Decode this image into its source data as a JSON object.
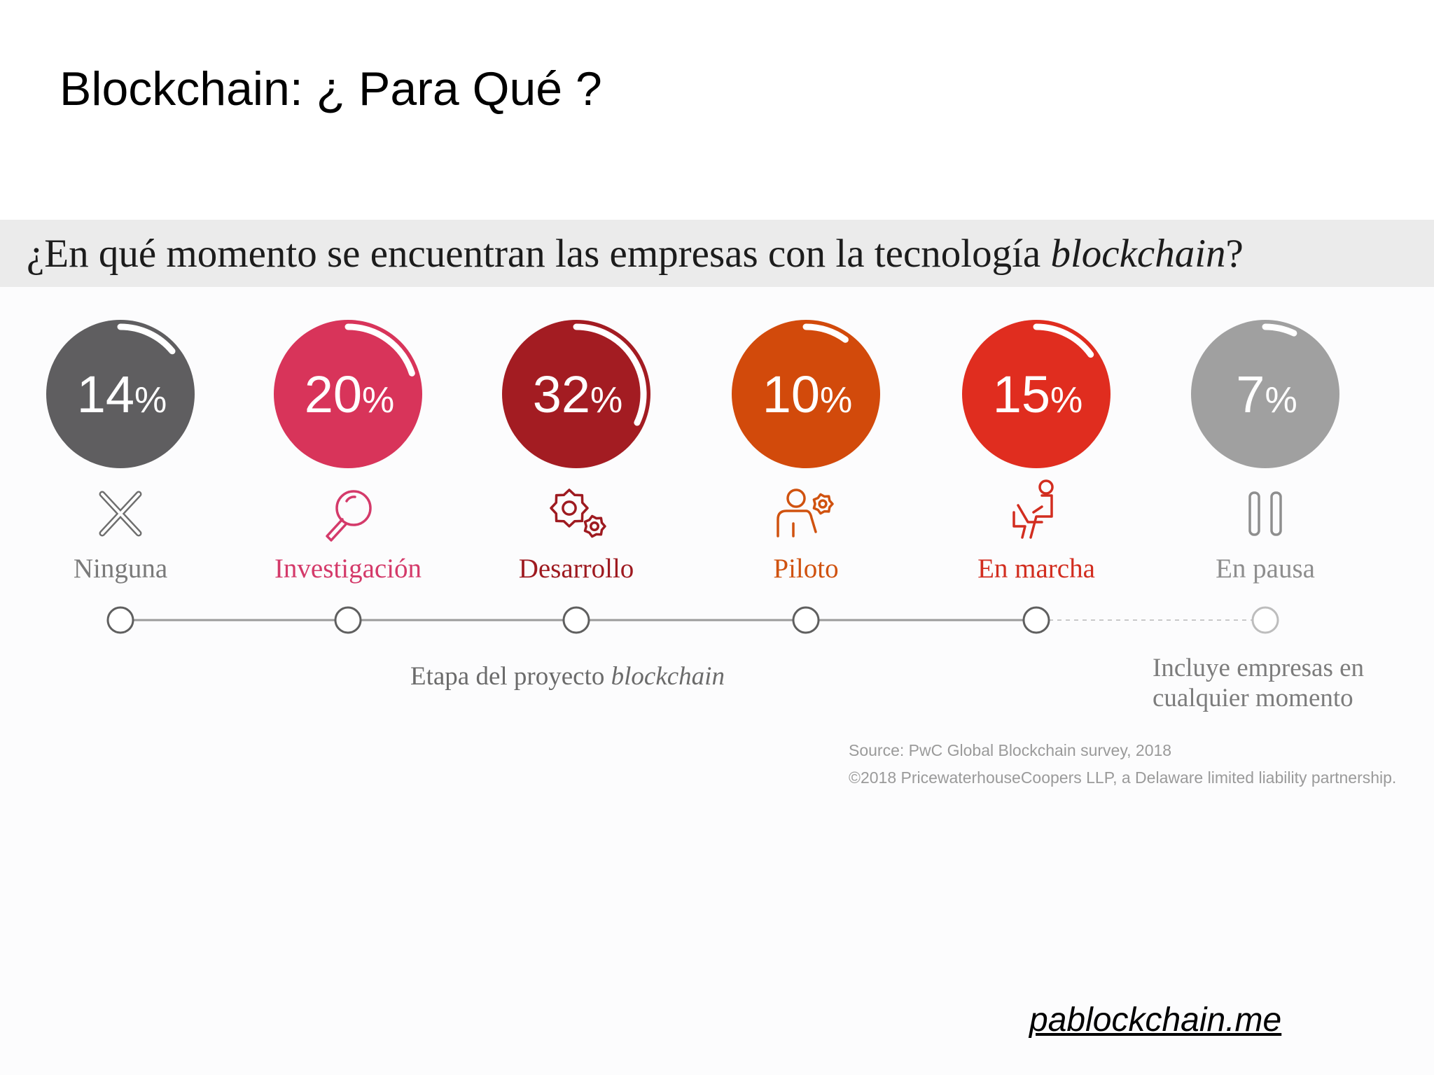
{
  "slide": {
    "title": "Blockchain: ¿ Para Qué ?",
    "website": "pablockchain.me"
  },
  "infographic": {
    "question_prefix": "¿En qué momento se encuentran las empresas con la tecnología ",
    "question_italic": "blockchain",
    "question_suffix": "?",
    "axis_caption_prefix": "Etapa del proyecto ",
    "axis_caption_italic": "blockchain",
    "pause_note_line1": "Incluye empresas en",
    "pause_note_line2": "cualquier momento",
    "source_line1": "Source: PwC Global Blockchain survey, 2018",
    "source_line2": "©2018 PricewaterhouseCoopers LLP, a Delaware limited liability partnership."
  },
  "chart_data": {
    "type": "bar",
    "categories": [
      "Ninguna",
      "Investigación",
      "Desarrollo",
      "Piloto",
      "En marcha",
      "En pausa"
    ],
    "values": [
      14,
      20,
      32,
      10,
      15,
      7
    ],
    "value_labels": [
      "14",
      "20",
      "32",
      "10",
      "15",
      "7"
    ],
    "unit": "%",
    "colors": [
      "#5f5e60",
      "#d8345a",
      "#a31c22",
      "#d24a0b",
      "#e02d1f",
      "#a0a0a0"
    ],
    "label_colors": [
      "#7a7a7a",
      "#d43a6a",
      "#9e1a20",
      "#d0520f",
      "#d22d1f",
      "#8e8e8e"
    ],
    "icons": [
      "x-icon",
      "magnifier-icon",
      "gears-icon",
      "person-gear-icon",
      "person-laptop-icon",
      "pause-icon"
    ],
    "timeline_dashed_last": true,
    "xlabel": "Etapa del proyecto blockchain",
    "ylabel": "",
    "ylim": [
      0,
      100
    ]
  }
}
